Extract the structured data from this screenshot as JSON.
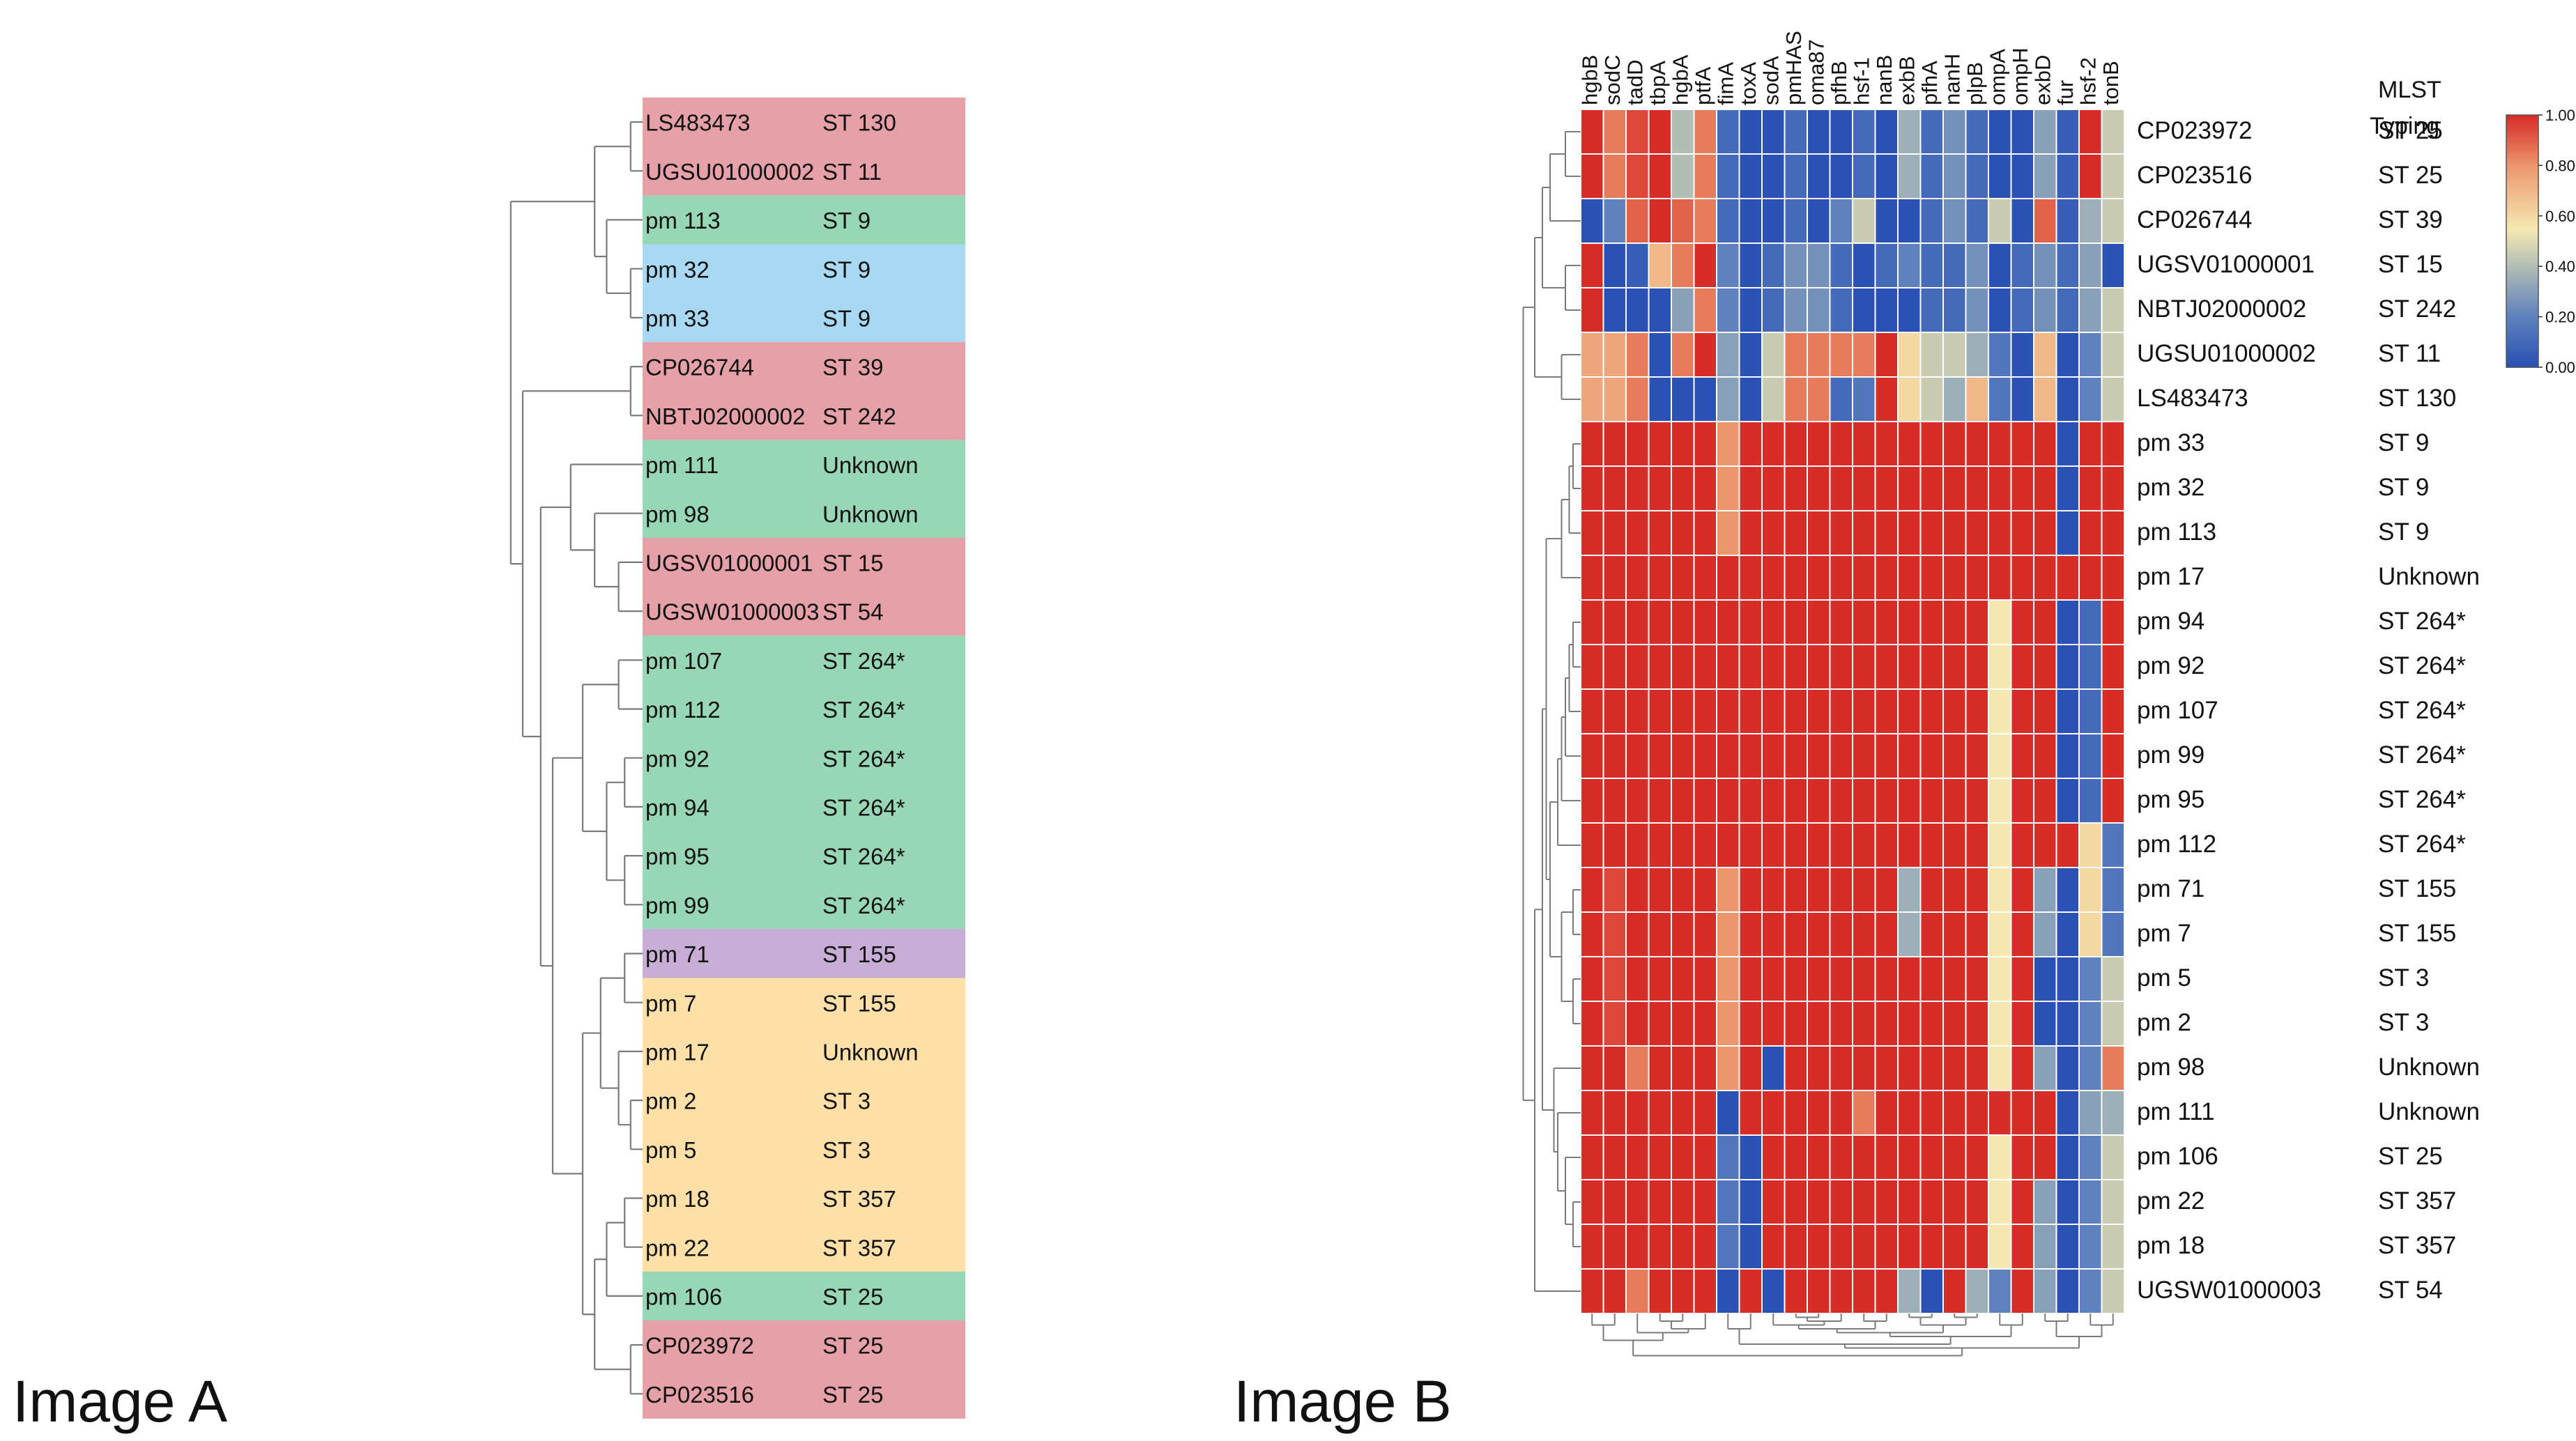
{
  "panels": {
    "a_label": "Image A",
    "b_label": "Image B"
  },
  "colors": {
    "pink": "#e6a0a8",
    "green": "#97d7b5",
    "blue": "#a9d9f2",
    "purple": "#c8aed6",
    "orange": "#fde0a8",
    "line": "#7a7a7a",
    "cell_border": "#ffffff"
  },
  "chart_data": [
    {
      "type": "dendrogram",
      "panel": "Image A",
      "rows": [
        {
          "id": "LS483473",
          "st": "ST 130",
          "color": "#e6a0a8"
        },
        {
          "id": "UGSU01000002",
          "st": "ST 11",
          "color": "#e6a0a8"
        },
        {
          "id": "pm 113",
          "st": "ST 9",
          "color": "#97d7b5"
        },
        {
          "id": "pm 32",
          "st": "ST 9",
          "color": "#a9d9f2"
        },
        {
          "id": "pm 33",
          "st": "ST 9",
          "color": "#a9d9f2"
        },
        {
          "id": "CP026744",
          "st": "ST 39",
          "color": "#e6a0a8"
        },
        {
          "id": "NBTJ02000002",
          "st": "ST 242",
          "color": "#e6a0a8"
        },
        {
          "id": "pm 111",
          "st": "Unknown",
          "color": "#97d7b5"
        },
        {
          "id": "pm 98",
          "st": "Unknown",
          "color": "#97d7b5"
        },
        {
          "id": "UGSV01000001",
          "st": "ST 15",
          "color": "#e6a0a8"
        },
        {
          "id": "UGSW01000003",
          "st": "ST 54",
          "color": "#e6a0a8"
        },
        {
          "id": "pm 107",
          "st": "ST 264*",
          "color": "#97d7b5"
        },
        {
          "id": "pm 112",
          "st": "ST 264*",
          "color": "#97d7b5"
        },
        {
          "id": "pm 92",
          "st": "ST 264*",
          "color": "#97d7b5"
        },
        {
          "id": "pm 94",
          "st": "ST 264*",
          "color": "#97d7b5"
        },
        {
          "id": "pm 95",
          "st": "ST 264*",
          "color": "#97d7b5"
        },
        {
          "id": "pm 99",
          "st": "ST 264*",
          "color": "#97d7b5"
        },
        {
          "id": "pm 71",
          "st": "ST 155",
          "color": "#c8aed6"
        },
        {
          "id": "pm 7",
          "st": "ST 155",
          "color": "#fde0a8"
        },
        {
          "id": "pm 17",
          "st": "Unknown",
          "color": "#fde0a8"
        },
        {
          "id": "pm 2",
          "st": "ST 3",
          "color": "#fde0a8"
        },
        {
          "id": "pm 5",
          "st": "ST 3",
          "color": "#fde0a8"
        },
        {
          "id": "pm 18",
          "st": "ST 357",
          "color": "#fde0a8"
        },
        {
          "id": "pm 22",
          "st": "ST 357",
          "color": "#fde0a8"
        },
        {
          "id": "pm 106",
          "st": "ST 25",
          "color": "#97d7b5"
        },
        {
          "id": "CP023972",
          "st": "ST 25",
          "color": "#e6a0a8"
        },
        {
          "id": "CP023516",
          "st": "ST 25",
          "color": "#e6a0a8"
        }
      ]
    },
    {
      "type": "heatmap",
      "panel": "Image B",
      "columns": [
        "hgbB",
        "sodC",
        "tadD",
        "tbpA",
        "hgbA",
        "ptfA",
        "fimA",
        "toxA",
        "sodA",
        "pmHAS",
        "oma87",
        "pfhB",
        "hsf-1",
        "nanB",
        "exbB",
        "pfhA",
        "nanH",
        "plpB",
        "ompA",
        "ompH",
        "exbD",
        "fur",
        "hsf-2",
        "tonB"
      ],
      "row_header": [
        "MLST",
        "Typing"
      ],
      "rows": [
        "CP023972",
        "CP023516",
        "CP026744",
        "UGSV01000001",
        "NBTJ02000002",
        "UGSU01000002",
        "LS483473",
        "pm 33",
        "pm 32",
        "pm 113",
        "pm 17",
        "pm 94",
        "pm 92",
        "pm 107",
        "pm 99",
        "pm 95",
        "pm 112",
        "pm 71",
        "pm 7",
        "pm 5",
        "pm 2",
        "pm 98",
        "pm 111",
        "pm 106",
        "pm 22",
        "pm 18",
        "UGSW01000003"
      ],
      "mlst": [
        "ST 25",
        "ST 25",
        "ST 39",
        "ST 15",
        "ST 242",
        "ST 11",
        "ST 130",
        "ST 9",
        "ST 9",
        "ST 9",
        "Unknown",
        "ST 264*",
        "ST 264*",
        "ST 264*",
        "ST 264*",
        "ST 264*",
        "ST 264*",
        "ST 155",
        "ST 155",
        "ST 3",
        "ST 3",
        "Unknown",
        "Unknown",
        "ST 25",
        "ST 357",
        "ST 357",
        "ST 54"
      ],
      "values": [
        [
          1.0,
          0.85,
          0.95,
          1.0,
          0.4,
          0.85,
          0.1,
          0.0,
          0.0,
          0.1,
          0.0,
          0.0,
          0.1,
          0.0,
          0.35,
          0.1,
          0.25,
          0.1,
          0.0,
          0.0,
          0.3,
          0.05,
          1.0,
          0.45
        ],
        [
          1.0,
          0.85,
          0.95,
          1.0,
          0.4,
          0.85,
          0.1,
          0.0,
          0.0,
          0.1,
          0.0,
          0.0,
          0.1,
          0.0,
          0.35,
          0.1,
          0.25,
          0.1,
          0.0,
          0.0,
          0.3,
          0.05,
          1.0,
          0.45
        ],
        [
          0.0,
          0.2,
          0.9,
          1.0,
          0.9,
          0.85,
          0.1,
          0.0,
          0.0,
          0.1,
          0.0,
          0.2,
          0.45,
          0.0,
          0.0,
          0.1,
          0.25,
          0.1,
          0.45,
          0.0,
          0.9,
          0.05,
          0.35,
          0.45
        ],
        [
          1.0,
          0.0,
          0.05,
          0.7,
          0.85,
          1.0,
          0.2,
          0.0,
          0.1,
          0.25,
          0.25,
          0.1,
          0.0,
          0.1,
          0.2,
          0.1,
          0.1,
          0.25,
          0.0,
          0.1,
          0.25,
          0.1,
          0.3,
          0.0
        ],
        [
          1.0,
          0.0,
          0.0,
          0.0,
          0.3,
          0.85,
          0.2,
          0.0,
          0.1,
          0.25,
          0.25,
          0.1,
          0.0,
          0.0,
          0.0,
          0.1,
          0.1,
          0.25,
          0.0,
          0.1,
          0.25,
          0.1,
          0.3,
          0.45
        ],
        [
          0.75,
          0.75,
          0.85,
          0.0,
          0.85,
          1.0,
          0.3,
          0.0,
          0.45,
          0.85,
          0.85,
          0.85,
          0.85,
          1.0,
          0.6,
          0.45,
          0.45,
          0.35,
          0.15,
          0.0,
          0.7,
          0.0,
          0.2,
          0.45
        ],
        [
          0.75,
          0.75,
          0.85,
          0.0,
          0.0,
          0.0,
          0.3,
          0.0,
          0.45,
          0.85,
          0.85,
          0.1,
          0.15,
          1.0,
          0.6,
          0.45,
          0.35,
          0.7,
          0.15,
          0.0,
          0.7,
          0.0,
          0.2,
          0.45
        ],
        [
          1.0,
          1.0,
          1.0,
          1.0,
          1.0,
          1.0,
          0.8,
          1.0,
          1.0,
          1.0,
          1.0,
          1.0,
          1.0,
          1.0,
          1.0,
          1.0,
          1.0,
          1.0,
          1.0,
          1.0,
          1.0,
          0.0,
          1.0,
          1.0
        ],
        [
          1.0,
          1.0,
          1.0,
          1.0,
          1.0,
          1.0,
          0.8,
          1.0,
          1.0,
          1.0,
          1.0,
          1.0,
          1.0,
          1.0,
          1.0,
          1.0,
          1.0,
          1.0,
          1.0,
          1.0,
          1.0,
          0.0,
          1.0,
          1.0
        ],
        [
          1.0,
          1.0,
          1.0,
          1.0,
          1.0,
          1.0,
          0.8,
          1.0,
          1.0,
          1.0,
          1.0,
          1.0,
          1.0,
          1.0,
          1.0,
          1.0,
          1.0,
          1.0,
          1.0,
          1.0,
          1.0,
          0.0,
          1.0,
          1.0
        ],
        [
          1.0,
          1.0,
          1.0,
          1.0,
          1.0,
          1.0,
          1.0,
          1.0,
          1.0,
          1.0,
          1.0,
          1.0,
          1.0,
          1.0,
          1.0,
          1.0,
          1.0,
          1.0,
          1.0,
          1.0,
          1.0,
          1.0,
          1.0,
          1.0
        ],
        [
          1.0,
          1.0,
          1.0,
          1.0,
          1.0,
          1.0,
          1.0,
          1.0,
          1.0,
          1.0,
          1.0,
          1.0,
          1.0,
          1.0,
          1.0,
          1.0,
          1.0,
          1.0,
          0.55,
          1.0,
          1.0,
          0.0,
          0.1,
          1.0
        ],
        [
          1.0,
          1.0,
          1.0,
          1.0,
          1.0,
          1.0,
          1.0,
          1.0,
          1.0,
          1.0,
          1.0,
          1.0,
          1.0,
          1.0,
          1.0,
          1.0,
          1.0,
          1.0,
          0.55,
          1.0,
          1.0,
          0.0,
          0.1,
          1.0
        ],
        [
          1.0,
          1.0,
          1.0,
          1.0,
          1.0,
          1.0,
          1.0,
          1.0,
          1.0,
          1.0,
          1.0,
          1.0,
          1.0,
          1.0,
          1.0,
          1.0,
          1.0,
          1.0,
          0.55,
          1.0,
          1.0,
          0.0,
          0.1,
          1.0
        ],
        [
          1.0,
          1.0,
          1.0,
          1.0,
          1.0,
          1.0,
          1.0,
          1.0,
          1.0,
          1.0,
          1.0,
          1.0,
          1.0,
          1.0,
          1.0,
          1.0,
          1.0,
          1.0,
          0.55,
          1.0,
          1.0,
          0.0,
          0.1,
          1.0
        ],
        [
          1.0,
          1.0,
          1.0,
          1.0,
          1.0,
          1.0,
          1.0,
          1.0,
          1.0,
          1.0,
          1.0,
          1.0,
          1.0,
          1.0,
          1.0,
          1.0,
          1.0,
          1.0,
          0.55,
          1.0,
          1.0,
          0.0,
          0.1,
          1.0
        ],
        [
          1.0,
          1.0,
          1.0,
          1.0,
          1.0,
          1.0,
          1.0,
          1.0,
          1.0,
          1.0,
          1.0,
          1.0,
          1.0,
          1.0,
          1.0,
          1.0,
          1.0,
          1.0,
          0.55,
          1.0,
          1.0,
          1.0,
          0.6,
          0.15
        ],
        [
          1.0,
          0.95,
          1.0,
          1.0,
          1.0,
          1.0,
          0.8,
          1.0,
          1.0,
          1.0,
          1.0,
          1.0,
          1.0,
          1.0,
          0.35,
          1.0,
          1.0,
          1.0,
          0.55,
          1.0,
          0.3,
          0.0,
          0.6,
          0.15
        ],
        [
          1.0,
          0.95,
          1.0,
          1.0,
          1.0,
          1.0,
          0.8,
          1.0,
          1.0,
          1.0,
          1.0,
          1.0,
          1.0,
          1.0,
          0.35,
          1.0,
          1.0,
          1.0,
          0.55,
          1.0,
          0.3,
          0.0,
          0.6,
          0.15
        ],
        [
          1.0,
          0.95,
          1.0,
          1.0,
          1.0,
          1.0,
          0.8,
          1.0,
          1.0,
          1.0,
          1.0,
          1.0,
          1.0,
          1.0,
          1.0,
          1.0,
          1.0,
          1.0,
          0.55,
          1.0,
          0.0,
          0.0,
          0.2,
          0.45
        ],
        [
          1.0,
          0.95,
          1.0,
          1.0,
          1.0,
          1.0,
          0.8,
          1.0,
          1.0,
          1.0,
          1.0,
          1.0,
          1.0,
          1.0,
          1.0,
          1.0,
          1.0,
          1.0,
          0.55,
          1.0,
          0.0,
          0.0,
          0.2,
          0.45
        ],
        [
          1.0,
          1.0,
          0.85,
          1.0,
          1.0,
          1.0,
          0.8,
          1.0,
          0.0,
          1.0,
          1.0,
          1.0,
          1.0,
          1.0,
          1.0,
          1.0,
          1.0,
          1.0,
          0.55,
          1.0,
          0.3,
          0.0,
          0.2,
          0.85
        ],
        [
          1.0,
          1.0,
          1.0,
          1.0,
          1.0,
          1.0,
          0.0,
          1.0,
          1.0,
          1.0,
          1.0,
          1.0,
          0.85,
          1.0,
          1.0,
          1.0,
          1.0,
          1.0,
          1.0,
          1.0,
          1.0,
          0.0,
          0.3,
          0.35
        ],
        [
          1.0,
          1.0,
          1.0,
          1.0,
          1.0,
          1.0,
          0.15,
          0.0,
          1.0,
          1.0,
          1.0,
          1.0,
          1.0,
          1.0,
          1.0,
          1.0,
          1.0,
          1.0,
          0.55,
          1.0,
          1.0,
          0.0,
          0.2,
          0.45
        ],
        [
          1.0,
          1.0,
          1.0,
          1.0,
          1.0,
          1.0,
          0.15,
          0.0,
          1.0,
          1.0,
          1.0,
          1.0,
          1.0,
          1.0,
          1.0,
          1.0,
          1.0,
          1.0,
          0.55,
          1.0,
          0.3,
          0.0,
          0.2,
          0.45
        ],
        [
          1.0,
          1.0,
          1.0,
          1.0,
          1.0,
          1.0,
          0.15,
          0.0,
          1.0,
          1.0,
          1.0,
          1.0,
          1.0,
          1.0,
          1.0,
          1.0,
          1.0,
          1.0,
          0.55,
          1.0,
          0.3,
          0.0,
          0.2,
          0.45
        ],
        [
          1.0,
          1.0,
          0.85,
          1.0,
          1.0,
          1.0,
          0.0,
          1.0,
          0.0,
          1.0,
          1.0,
          1.0,
          1.0,
          1.0,
          0.35,
          0.0,
          1.0,
          0.35,
          0.2,
          1.0,
          0.3,
          0.0,
          0.2,
          0.45
        ]
      ],
      "colorbar": {
        "range": [
          0,
          1
        ],
        "ticks": [
          "1.00",
          "0.80",
          "0.60",
          "0.40",
          "0.20",
          "0.00"
        ]
      }
    }
  ]
}
